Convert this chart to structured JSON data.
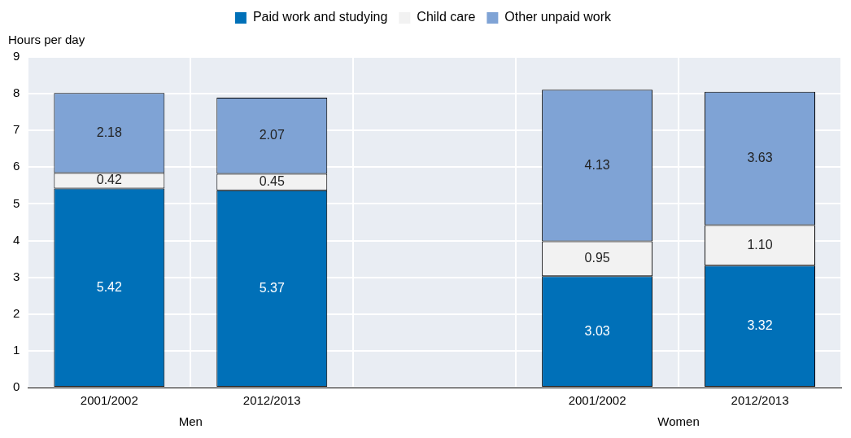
{
  "chart_data": {
    "type": "bar",
    "stacked": true,
    "categories": [
      "2001/2002",
      "2012/2013",
      null,
      "2001/2002",
      "2012/2013"
    ],
    "series": [
      {
        "name": "Paid work and studying",
        "color": "#0070b8",
        "values": [
          5.42,
          5.37,
          null,
          3.03,
          3.32
        ],
        "value_labels": [
          "5.42",
          "5.37",
          null,
          "3.03",
          "3.32"
        ]
      },
      {
        "name": "Child care",
        "color": "#f2f2f2",
        "values": [
          0.42,
          0.45,
          null,
          0.95,
          1.1
        ],
        "value_labels": [
          "0.42",
          "0.45",
          null,
          "0.95",
          "1.10"
        ]
      },
      {
        "name": "Other unpaid work",
        "color": "#7fa3d5",
        "values": [
          2.18,
          2.07,
          null,
          4.13,
          3.63
        ],
        "value_labels": [
          "2.18",
          "2.07",
          null,
          "4.13",
          "3.63"
        ]
      }
    ],
    "ylabel": "Hours per day",
    "ylim": [
      0,
      9
    ],
    "yticks": [
      0,
      1,
      2,
      3,
      4,
      5,
      6,
      7,
      8,
      9
    ],
    "grid": true,
    "legend": "top",
    "annotations": [
      "Men",
      "Women"
    ]
  }
}
